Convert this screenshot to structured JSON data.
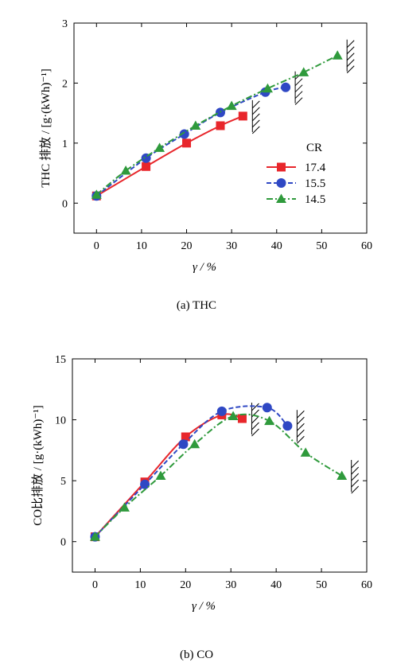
{
  "chart_data": [
    {
      "type": "line",
      "caption": "(a) THC",
      "xlabel": "γ / %",
      "ylabel": "THC 排放 / [g·(kWh)⁻¹]",
      "xlim": [
        -5,
        60
      ],
      "ylim": [
        -0.5,
        3
      ],
      "xticks": [
        0,
        10,
        20,
        30,
        40,
        50,
        60
      ],
      "yticks": [
        0,
        1,
        2,
        3
      ],
      "legend": {
        "title": "CR",
        "placement": "center-right"
      },
      "series": [
        {
          "name": "17.4",
          "color": "#e8262b",
          "marker": "square",
          "dash": "solid",
          "x": [
            0,
            11,
            20,
            27.5,
            32.5
          ],
          "y": [
            0.12,
            0.61,
            1.0,
            1.29,
            1.45
          ]
        },
        {
          "name": "15.5",
          "color": "#2f48c4",
          "marker": "circle",
          "dash": "dash",
          "x": [
            0,
            11,
            19.5,
            27.5,
            37.5,
            42
          ],
          "y": [
            0.12,
            0.75,
            1.15,
            1.51,
            1.85,
            1.93
          ]
        },
        {
          "name": "14.5",
          "color": "#2f9a3c",
          "marker": "triangle",
          "dash": "dashdot",
          "x": [
            0,
            6.5,
            14,
            22,
            30,
            38,
            46,
            53.5
          ],
          "y": [
            0.14,
            0.54,
            0.92,
            1.29,
            1.62,
            1.91,
            2.18,
            2.46
          ]
        }
      ]
    },
    {
      "type": "line",
      "caption": "(b) CO",
      "xlabel": "γ / %",
      "ylabel": "CO比排放 / [g·(kWh)⁻¹]",
      "xlim": [
        -5,
        60
      ],
      "ylim": [
        -2.5,
        15
      ],
      "xticks": [
        0,
        10,
        20,
        30,
        40,
        50,
        60
      ],
      "yticks": [
        0,
        5,
        10,
        15
      ],
      "series": [
        {
          "name": "17.4",
          "color": "#e8262b",
          "marker": "square",
          "dash": "solid",
          "x": [
            0,
            11,
            20,
            28,
            32.5
          ],
          "y": [
            0.4,
            4.9,
            8.6,
            10.4,
            10.1
          ]
        },
        {
          "name": "15.5",
          "color": "#2f48c4",
          "marker": "circle",
          "dash": "dash",
          "x": [
            0,
            11,
            19.5,
            28,
            38,
            42.5
          ],
          "y": [
            0.4,
            4.7,
            8.0,
            10.7,
            11.0,
            9.5
          ]
        },
        {
          "name": "14.5",
          "color": "#2f9a3c",
          "marker": "triangle",
          "dash": "dashdot",
          "x": [
            0,
            6.5,
            14.5,
            22,
            30.5,
            38.5,
            46.5,
            54.5
          ],
          "y": [
            0.4,
            2.8,
            5.4,
            8.0,
            10.3,
            9.9,
            7.3,
            5.4
          ]
        }
      ]
    }
  ]
}
